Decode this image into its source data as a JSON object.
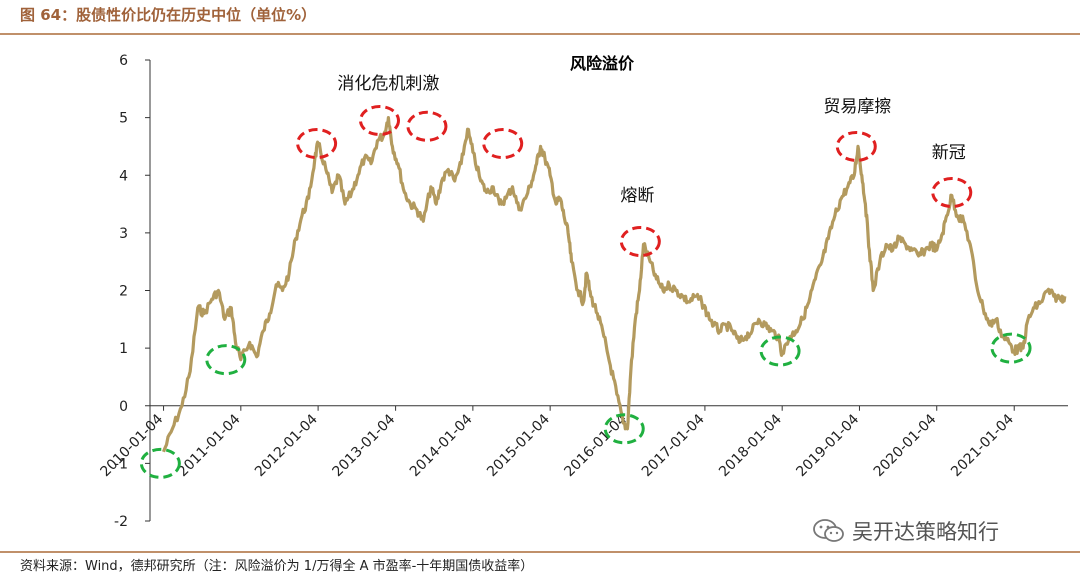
{
  "figure_title": "图 64：股债性价比仍在历史中位（单位%）",
  "source_note": "资料来源：Wind，德邦研究所（注：风险溢价为 1/万得全 A 市盈率-十年期国债收益率）",
  "watermark_label": "吴开达策略知行",
  "watermark_icon": "wechat-icon",
  "colors": {
    "line": "#b39a5e",
    "high_marker": "#e02020",
    "low_marker": "#20b040",
    "title": "#a0623a"
  },
  "chart_data": {
    "type": "line",
    "title": "风险溢价",
    "xlabel": "",
    "ylabel": "",
    "ylim": [
      -2,
      6
    ],
    "yticks": [
      "-2",
      "-1",
      "0",
      "1",
      "2",
      "3",
      "4",
      "5",
      "6"
    ],
    "x_tick_labels": [
      "2010-01-04",
      "2011-01-04",
      "2012-01-04",
      "2013-01-04",
      "2014-01-04",
      "2015-01-04",
      "2016-01-04",
      "2017-01-04",
      "2018-01-04",
      "2019-01-04",
      "2020-01-04",
      "2021-01-04"
    ],
    "grid": false,
    "legend": "none",
    "series": [
      {
        "points": [
          [
            "2010-01-04",
            -0.8
          ],
          [
            "2010-02-15",
            -0.4
          ],
          [
            "2010-04-01",
            0.0
          ],
          [
            "2010-05-10",
            0.6
          ],
          [
            "2010-06-15",
            1.7
          ],
          [
            "2010-07-15",
            1.6
          ],
          [
            "2010-08-20",
            1.85
          ],
          [
            "2010-09-20",
            2.0
          ],
          [
            "2010-10-20",
            1.5
          ],
          [
            "2010-11-20",
            1.7
          ],
          [
            "2010-12-10",
            1.1
          ],
          [
            "2011-01-04",
            0.8
          ],
          [
            "2011-02-15",
            1.1
          ],
          [
            "2011-03-20",
            0.85
          ],
          [
            "2011-04-20",
            1.3
          ],
          [
            "2011-05-20",
            1.6
          ],
          [
            "2011-06-20",
            2.1
          ],
          [
            "2011-07-20",
            2.0
          ],
          [
            "2011-08-20",
            2.3
          ],
          [
            "2011-09-20",
            2.9
          ],
          [
            "2011-10-20",
            3.3
          ],
          [
            "2011-11-20",
            3.6
          ],
          [
            "2011-12-20",
            4.3
          ],
          [
            "2012-01-04",
            4.55
          ],
          [
            "2012-02-10",
            4.1
          ],
          [
            "2012-03-10",
            3.7
          ],
          [
            "2012-04-10",
            4.0
          ],
          [
            "2012-05-10",
            3.5
          ],
          [
            "2012-06-10",
            3.7
          ],
          [
            "2012-07-10",
            4.0
          ],
          [
            "2012-08-10",
            4.3
          ],
          [
            "2012-09-10",
            4.2
          ],
          [
            "2012-10-10",
            4.6
          ],
          [
            "2012-11-10",
            4.7
          ],
          [
            "2012-12-01",
            5.0
          ],
          [
            "2012-12-20",
            4.5
          ],
          [
            "2013-01-15",
            4.2
          ],
          [
            "2013-02-15",
            3.7
          ],
          [
            "2013-03-15",
            3.5
          ],
          [
            "2013-04-15",
            3.4
          ],
          [
            "2013-05-15",
            3.2
          ],
          [
            "2013-06-20",
            3.8
          ],
          [
            "2013-07-15",
            3.5
          ],
          [
            "2013-08-10",
            3.9
          ],
          [
            "2013-09-10",
            4.1
          ],
          [
            "2013-10-10",
            3.9
          ],
          [
            "2013-11-10",
            4.2
          ],
          [
            "2013-12-10",
            4.8
          ],
          [
            "2014-01-04",
            4.4
          ],
          [
            "2014-02-10",
            3.9
          ],
          [
            "2014-03-10",
            3.7
          ],
          [
            "2014-04-10",
            3.8
          ],
          [
            "2014-05-10",
            3.5
          ],
          [
            "2014-06-10",
            3.6
          ],
          [
            "2014-07-10",
            3.8
          ],
          [
            "2014-08-10",
            3.4
          ],
          [
            "2014-09-10",
            3.6
          ],
          [
            "2014-10-10",
            3.9
          ],
          [
            "2014-11-01",
            4.2
          ],
          [
            "2014-11-20",
            4.5
          ],
          [
            "2014-12-10",
            4.3
          ],
          [
            "2015-01-04",
            4.0
          ],
          [
            "2015-02-01",
            3.5
          ],
          [
            "2015-02-20",
            3.6
          ],
          [
            "2015-03-10",
            3.3
          ],
          [
            "2015-03-30",
            3.0
          ],
          [
            "2015-04-15",
            2.5
          ],
          [
            "2015-05-15",
            2.0
          ],
          [
            "2015-06-10",
            1.8
          ],
          [
            "2015-06-25",
            2.3
          ],
          [
            "2015-07-15",
            1.9
          ],
          [
            "2015-08-15",
            1.6
          ],
          [
            "2015-09-15",
            1.2
          ],
          [
            "2015-10-15",
            0.7
          ],
          [
            "2015-11-15",
            0.2
          ],
          [
            "2015-12-15",
            -0.3
          ],
          [
            "2016-01-04",
            -0.4
          ],
          [
            "2016-01-20",
            0.6
          ],
          [
            "2016-02-10",
            1.5
          ],
          [
            "2016-03-01",
            2.0
          ],
          [
            "2016-03-20",
            2.8
          ],
          [
            "2016-04-20",
            2.5
          ],
          [
            "2016-05-20",
            2.2
          ],
          [
            "2016-06-20",
            2.0
          ],
          [
            "2016-07-20",
            2.1
          ],
          [
            "2016-08-20",
            2.0
          ],
          [
            "2016-09-20",
            1.9
          ],
          [
            "2016-10-20",
            1.8
          ],
          [
            "2016-11-20",
            1.9
          ],
          [
            "2016-12-20",
            1.8
          ],
          [
            "2017-01-15",
            1.6
          ],
          [
            "2017-02-15",
            1.4
          ],
          [
            "2017-03-15",
            1.3
          ],
          [
            "2017-04-15",
            1.4
          ],
          [
            "2017-05-15",
            1.3
          ],
          [
            "2017-06-15",
            1.1
          ],
          [
            "2017-07-15",
            1.2
          ],
          [
            "2017-08-15",
            1.3
          ],
          [
            "2017-09-15",
            1.5
          ],
          [
            "2017-10-15",
            1.4
          ],
          [
            "2017-11-15",
            1.3
          ],
          [
            "2017-12-15",
            1.2
          ],
          [
            "2018-01-04",
            0.9
          ],
          [
            "2018-02-10",
            1.2
          ],
          [
            "2018-03-10",
            1.3
          ],
          [
            "2018-04-10",
            1.5
          ],
          [
            "2018-05-10",
            1.8
          ],
          [
            "2018-06-10",
            2.2
          ],
          [
            "2018-07-10",
            2.5
          ],
          [
            "2018-08-10",
            2.9
          ],
          [
            "2018-09-10",
            3.3
          ],
          [
            "2018-10-10",
            3.6
          ],
          [
            "2018-11-10",
            3.8
          ],
          [
            "2018-12-10",
            4.0
          ],
          [
            "2018-12-28",
            4.5
          ],
          [
            "2019-01-15",
            4.0
          ],
          [
            "2019-02-01",
            3.5
          ],
          [
            "2019-02-20",
            2.7
          ],
          [
            "2019-03-10",
            2.0
          ],
          [
            "2019-04-10",
            2.5
          ],
          [
            "2019-05-10",
            2.8
          ],
          [
            "2019-06-10",
            2.7
          ],
          [
            "2019-07-10",
            2.9
          ],
          [
            "2019-08-10",
            2.8
          ],
          [
            "2019-09-10",
            2.7
          ],
          [
            "2019-10-10",
            2.6
          ],
          [
            "2019-11-10",
            2.7
          ],
          [
            "2019-12-10",
            2.8
          ],
          [
            "2020-01-04",
            2.7
          ],
          [
            "2020-02-01",
            3.0
          ],
          [
            "2020-02-20",
            3.3
          ],
          [
            "2020-03-15",
            3.65
          ],
          [
            "2020-04-10",
            3.3
          ],
          [
            "2020-05-10",
            3.2
          ],
          [
            "2020-06-10",
            2.8
          ],
          [
            "2020-07-10",
            2.1
          ],
          [
            "2020-08-10",
            1.7
          ],
          [
            "2020-09-10",
            1.4
          ],
          [
            "2020-10-10",
            1.5
          ],
          [
            "2020-11-10",
            1.2
          ],
          [
            "2020-12-10",
            1.1
          ],
          [
            "2021-01-04",
            0.95
          ],
          [
            "2021-01-25",
            1.0
          ],
          [
            "2021-02-15",
            1.0
          ],
          [
            "2021-03-10",
            1.5
          ],
          [
            "2021-04-10",
            1.7
          ],
          [
            "2021-05-10",
            1.8
          ],
          [
            "2021-06-10",
            2.0
          ],
          [
            "2021-07-10",
            1.9
          ],
          [
            "2021-08-10",
            1.85
          ],
          [
            "2021-08-31",
            1.9
          ]
        ]
      }
    ],
    "annotations": [
      {
        "label": "消化危机刺激",
        "kind": "high",
        "circle_points": [
          [
            "2011-12-28",
            4.55
          ],
          [
            "2012-10-20",
            4.95
          ],
          [
            "2013-06-01",
            4.85
          ],
          [
            "2014-05-25",
            4.55
          ]
        ]
      },
      {
        "label": "熔断",
        "kind": "high",
        "circle_points": [
          [
            "2016-03-05",
            2.85
          ]
        ]
      },
      {
        "label": "贸易摩擦",
        "kind": "high",
        "circle_points": [
          [
            "2018-12-20",
            4.5
          ]
        ]
      },
      {
        "label": "新冠",
        "kind": "high",
        "circle_points": [
          [
            "2020-03-15",
            3.7
          ]
        ]
      },
      {
        "label": "",
        "kind": "low",
        "circle_points": [
          [
            "2009-12-20",
            -1.0
          ],
          [
            "2010-10-25",
            0.8
          ],
          [
            "2015-12-20",
            -0.4
          ],
          [
            "2017-12-25",
            0.95
          ],
          [
            "2020-12-20",
            1.0
          ]
        ]
      }
    ]
  }
}
